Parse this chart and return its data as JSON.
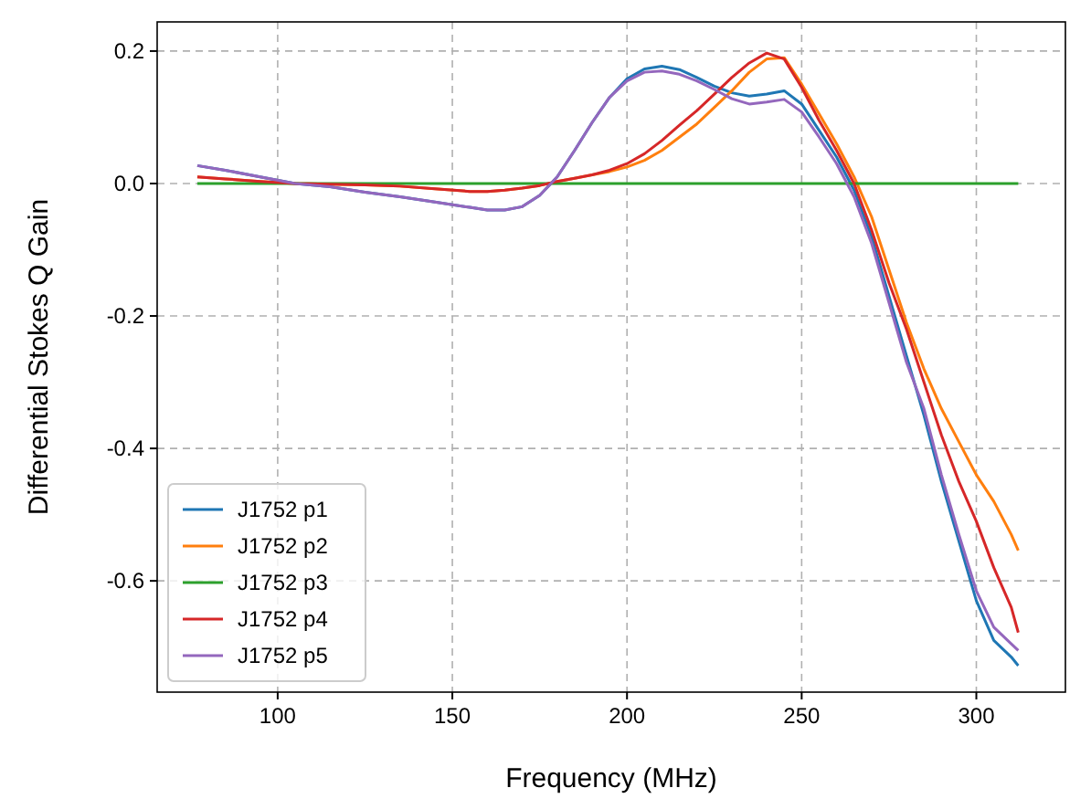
{
  "chart_data": {
    "type": "line",
    "xlabel": "Frequency (MHz)",
    "ylabel": "Differential Stokes Q Gain",
    "xlim": [
      65.5,
      325.5
    ],
    "ylim": [
      -0.768,
      0.244
    ],
    "xticks": [
      100,
      150,
      200,
      250,
      300
    ],
    "yticks": [
      {
        "value": 0.2,
        "label": "0.2"
      },
      {
        "value": 0,
        "label": "0.0"
      },
      {
        "value": -0.2,
        "label": "-0.2"
      },
      {
        "value": -0.4,
        "label": "-0.4"
      },
      {
        "value": -0.6,
        "label": "-0.6"
      }
    ],
    "grid": true,
    "legend": "bottom left",
    "line_style": "solid",
    "x": [
      77,
      85,
      95,
      105,
      115,
      125,
      135,
      145,
      155,
      160,
      165,
      170,
      175,
      180,
      185,
      190,
      195,
      200,
      205,
      210,
      215,
      220,
      225,
      230,
      235,
      240,
      245,
      250,
      255,
      260,
      265,
      270,
      275,
      280,
      285,
      290,
      295,
      300,
      305,
      310,
      312
    ],
    "series": [
      {
        "name": "J1752 p1",
        "color": "#1f77b4",
        "values": [
          0.027,
          0.02,
          0.01,
          0,
          -0.005,
          -0.013,
          -0.02,
          -0.028,
          -0.036,
          -0.04,
          -0.04,
          -0.035,
          -0.018,
          0.01,
          0.05,
          0.092,
          0.13,
          0.158,
          0.173,
          0.177,
          0.172,
          0.16,
          0.147,
          0.137,
          0.132,
          0.135,
          0.14,
          0.12,
          0.08,
          0.04,
          -0.01,
          -0.08,
          -0.17,
          -0.26,
          -0.35,
          -0.45,
          -0.54,
          -0.63,
          -0.69,
          -0.715,
          -0.728
        ]
      },
      {
        "name": "J1752 p2",
        "color": "#ff7f0e",
        "values": [
          0.01,
          0.007,
          0.003,
          0,
          -0.001,
          -0.002,
          -0.004,
          -0.008,
          -0.012,
          -0.012,
          -0.01,
          -0.007,
          -0.003,
          0.003,
          0.008,
          0.013,
          0.018,
          0.025,
          0.035,
          0.05,
          0.07,
          0.09,
          0.115,
          0.14,
          0.168,
          0.188,
          0.19,
          0.15,
          0.105,
          0.06,
          0.01,
          -0.05,
          -0.13,
          -0.21,
          -0.28,
          -0.34,
          -0.39,
          -0.44,
          -0.48,
          -0.53,
          -0.554
        ]
      },
      {
        "name": "J1752 p3",
        "color": "#2ca02c",
        "values": [
          0,
          0,
          0,
          0,
          0,
          0,
          0,
          0,
          0,
          0,
          0,
          0,
          0,
          0,
          0,
          0,
          0,
          0,
          0,
          0,
          0,
          0,
          0,
          0,
          0,
          0,
          0,
          0,
          0,
          0,
          0,
          0,
          0,
          0,
          0,
          0,
          0,
          0,
          0,
          0,
          0
        ]
      },
      {
        "name": "J1752 p4",
        "color": "#d62728",
        "values": [
          0.01,
          0.007,
          0.003,
          0,
          -0.001,
          -0.002,
          -0.004,
          -0.008,
          -0.012,
          -0.012,
          -0.01,
          -0.007,
          -0.003,
          0.003,
          0.008,
          0.013,
          0.02,
          0.03,
          0.045,
          0.065,
          0.088,
          0.11,
          0.135,
          0.16,
          0.182,
          0.197,
          0.188,
          0.145,
          0.095,
          0.05,
          0,
          -0.07,
          -0.15,
          -0.22,
          -0.3,
          -0.38,
          -0.45,
          -0.51,
          -0.58,
          -0.64,
          -0.678
        ]
      },
      {
        "name": "J1752 p5",
        "color": "#9467bd",
        "values": [
          0.027,
          0.02,
          0.01,
          0,
          -0.005,
          -0.013,
          -0.02,
          -0.028,
          -0.036,
          -0.04,
          -0.04,
          -0.035,
          -0.018,
          0.01,
          0.05,
          0.092,
          0.13,
          0.155,
          0.168,
          0.17,
          0.165,
          0.155,
          0.142,
          0.128,
          0.12,
          0.123,
          0.127,
          0.108,
          0.07,
          0.03,
          -0.02,
          -0.09,
          -0.18,
          -0.27,
          -0.34,
          -0.44,
          -0.53,
          -0.615,
          -0.67,
          -0.695,
          -0.705
        ]
      }
    ]
  }
}
